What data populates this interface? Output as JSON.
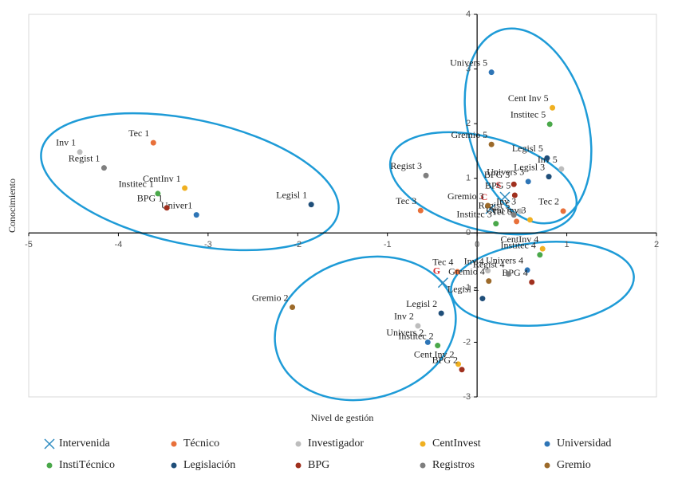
{
  "chart_data": {
    "type": "scatter",
    "x_label": "Nivel de gestión",
    "y_label": "Conocimiento",
    "xlim": [
      -5,
      2
    ],
    "ylim": [
      -3,
      4
    ],
    "xticks": [
      -5,
      -4,
      -3,
      -2,
      -1,
      0,
      1,
      2
    ],
    "yticks": [
      -3,
      -2,
      -1,
      0,
      1,
      2,
      3,
      4
    ],
    "series": [
      {
        "name": "Intervenida",
        "color": "#2e8bc0",
        "marker": "x",
        "label_color": "#d62b2b",
        "labels": [
          "C",
          "S",
          "G"
        ],
        "x": [
          0.15,
          0.31,
          -0.38
        ],
        "values": [
          0.44,
          0.66,
          -0.91
        ]
      },
      {
        "name": "Técnico",
        "color": "#e8703a",
        "marker": "dot",
        "labels": [
          "Tec 1",
          "Tec 3",
          "Tec 4",
          "Tec 5",
          "Tec 2"
        ],
        "x": [
          -3.61,
          -0.63,
          -0.22,
          0.44,
          0.96
        ],
        "values": [
          1.65,
          0.41,
          -0.71,
          0.21,
          0.4
        ]
      },
      {
        "name": "Investigador",
        "color": "#bdbdbd",
        "marker": "dot",
        "labels": [
          "Inv 1",
          "Inv 2",
          "Inv 3",
          "Inv 4",
          "Inv 5"
        ],
        "x": [
          -4.43,
          -0.66,
          0.48,
          0.12,
          0.94
        ],
        "values": [
          1.48,
          -1.7,
          0.4,
          -0.69,
          1.17
        ]
      },
      {
        "name": "CentInvest",
        "color": "#f0b020",
        "marker": "dot",
        "labels": [
          "CentInv 1",
          "Cent Inv 2",
          "Cent inv 3",
          "CentInv 4",
          "Cent Inv 5"
        ],
        "x": [
          -3.26,
          -0.21,
          0.59,
          0.73,
          0.84
        ],
        "values": [
          0.82,
          -2.4,
          0.24,
          -0.29,
          2.29
        ]
      },
      {
        "name": "Universidad",
        "color": "#2e75b6",
        "marker": "dot",
        "labels": [
          "Univer1",
          "Univers 2",
          "Univers 3",
          "Univers 4",
          "Univers 5"
        ],
        "x": [
          -3.13,
          -0.55,
          0.57,
          0.56,
          0.16
        ],
        "values": [
          0.33,
          -2.0,
          0.94,
          -0.68,
          2.94
        ]
      },
      {
        "name": "InstiTécnico",
        "color": "#4aa84a",
        "marker": "dot",
        "labels": [
          "Institec 1",
          "Institec 2",
          "Institec 3",
          "Institec 4",
          "Institec 5"
        ],
        "x": [
          -3.56,
          -0.44,
          0.21,
          0.7,
          0.81
        ],
        "values": [
          0.72,
          -2.06,
          0.17,
          -0.4,
          1.99
        ]
      },
      {
        "name": "Legislación",
        "color": "#1f4e79",
        "marker": "dot",
        "labels": [
          "Legisl 1",
          "Legisl 2",
          "Legisl 3",
          "Legisl 4",
          "Legisl 5"
        ],
        "x": [
          -1.85,
          -0.4,
          0.8,
          0.06,
          0.78
        ],
        "values": [
          0.52,
          -1.47,
          1.03,
          -1.2,
          1.37
        ]
      },
      {
        "name": "BPG",
        "color": "#a0301e",
        "marker": "dot",
        "labels": [
          "BPG 1",
          "BPG 2",
          "BPG 3",
          "BPG 4",
          "BPG 5"
        ],
        "x": [
          -3.46,
          -0.17,
          0.41,
          0.61,
          0.42
        ],
        "values": [
          0.46,
          -2.5,
          0.89,
          -0.9,
          0.69
        ]
      },
      {
        "name": "Registros",
        "color": "#7f7f7f",
        "marker": "dot",
        "labels": [
          "Regist 1",
          "Regist 3",
          "Regist 4",
          "Regist 5"
        ],
        "x": [
          -4.16,
          -0.57,
          0.35,
          0.41
        ],
        "values": [
          1.19,
          1.05,
          -0.75,
          0.33
        ]
      },
      {
        "name": "Gremio",
        "color": "#9c6a2a",
        "marker": "dot",
        "labels": [
          "Gremio 2",
          "Gremio 3",
          "Gremio 4",
          "Gremio 5"
        ],
        "x": [
          -2.06,
          0.12,
          0.13,
          0.16
        ],
        "values": [
          -1.36,
          0.5,
          -0.88,
          1.62
        ]
      }
    ]
  }
}
